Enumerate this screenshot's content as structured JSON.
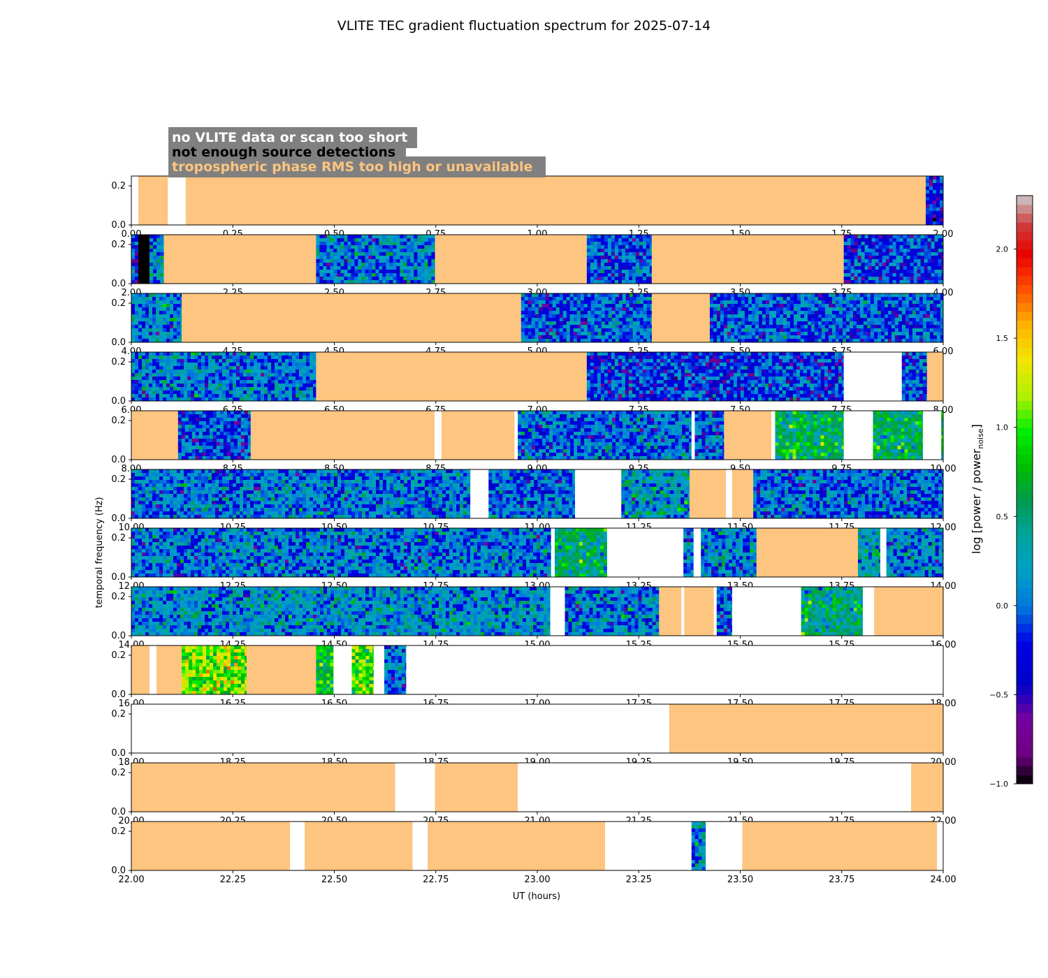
{
  "chart_data": {
    "type": "heatmap",
    "title": "VLITE TEC gradient fluctuation spectrum for 2025-07-14",
    "xlabel": "UT (hours)",
    "ylabel": "temporal frequency (Hz)",
    "ylim": [
      0.0,
      0.25
    ],
    "ytick_labels": [
      "0.0",
      "0.2"
    ],
    "legend": {
      "placement": "top-left",
      "entries": [
        {
          "label": "no VLITE data or scan too short",
          "text_color": "#ffffff",
          "key": "nodata"
        },
        {
          "label": "not enough source detections",
          "text_color": "#000000",
          "key": "fewdet"
        },
        {
          "label": "tropospheric phase RMS too high or unavailable",
          "text_color": "#fdc580",
          "key": "tropo"
        }
      ],
      "background": "#808080"
    },
    "colors": {
      "tropo": "#fdc580",
      "fewdet": "#000000",
      "nodata": "#ffffff"
    },
    "colorbar": {
      "label": "log [power / power",
      "label_subscript": "noise",
      "label_suffix": "]",
      "range": [
        -1.0,
        2.3
      ],
      "tick_values": [
        -1.0,
        -0.5,
        0.0,
        0.5,
        1.0,
        1.5,
        2.0
      ],
      "tick_labels": [
        "−1.0",
        "−0.5",
        "0.0",
        "0.5",
        "1.0",
        "1.5",
        "2.0"
      ]
    },
    "panels": [
      {
        "x_range": [
          0,
          2
        ],
        "tick_labels": [
          "0.00",
          "0.25",
          "0.50",
          "0.75",
          "1.00",
          "1.25",
          "1.50",
          "1.75",
          "2.00"
        ],
        "segments": [
          {
            "s": 0.0,
            "e": 0.017,
            "k": "nodata"
          },
          {
            "s": 0.017,
            "e": 0.09,
            "k": "tropo"
          },
          {
            "s": 0.09,
            "e": 0.134,
            "k": "nodata"
          },
          {
            "s": 0.134,
            "e": 1.957,
            "k": "tropo"
          },
          {
            "s": 1.957,
            "e": 2.0,
            "k": "data",
            "lvl": -0.3
          }
        ]
      },
      {
        "x_range": [
          2,
          4
        ],
        "tick_labels": [
          "2.00",
          "2.25",
          "2.50",
          "2.75",
          "3.00",
          "3.25",
          "3.50",
          "3.75",
          "4.00"
        ],
        "segments": [
          {
            "s": 2.0,
            "e": 2.017,
            "k": "data",
            "lvl": -0.2
          },
          {
            "s": 2.017,
            "e": 2.045,
            "k": "fewdet"
          },
          {
            "s": 2.045,
            "e": 2.08,
            "k": "data",
            "lvl": 0.1
          },
          {
            "s": 2.08,
            "e": 2.455,
            "k": "tropo"
          },
          {
            "s": 2.455,
            "e": 2.748,
            "k": "data",
            "lvl": 0.05
          },
          {
            "s": 2.748,
            "e": 3.122,
            "k": "tropo"
          },
          {
            "s": 3.122,
            "e": 3.282,
            "k": "data",
            "lvl": -0.1
          },
          {
            "s": 3.282,
            "e": 3.755,
            "k": "tropo"
          },
          {
            "s": 3.755,
            "e": 4.0,
            "k": "data",
            "lvl": -0.15
          }
        ]
      },
      {
        "x_range": [
          4,
          6
        ],
        "tick_labels": [
          "4.00",
          "4.25",
          "4.50",
          "4.75",
          "5.00",
          "5.25",
          "5.50",
          "5.75",
          "6.00"
        ],
        "segments": [
          {
            "s": 4.0,
            "e": 4.124,
            "k": "data",
            "lvl": 0.1
          },
          {
            "s": 4.124,
            "e": 4.96,
            "k": "tropo"
          },
          {
            "s": 4.96,
            "e": 5.282,
            "k": "data",
            "lvl": -0.05
          },
          {
            "s": 5.282,
            "e": 5.425,
            "k": "tropo"
          },
          {
            "s": 5.425,
            "e": 6.0,
            "k": "data",
            "lvl": -0.05
          }
        ]
      },
      {
        "x_range": [
          6,
          8
        ],
        "tick_labels": [
          "6.00",
          "6.25",
          "6.50",
          "6.75",
          "7.00",
          "7.25",
          "7.50",
          "7.75",
          "8.00"
        ],
        "segments": [
          {
            "s": 6.0,
            "e": 6.455,
            "k": "data",
            "lvl": 0.05
          },
          {
            "s": 6.455,
            "e": 7.122,
            "k": "tropo"
          },
          {
            "s": 7.122,
            "e": 7.755,
            "k": "data",
            "lvl": -0.15
          },
          {
            "s": 7.755,
            "e": 7.898,
            "k": "nodata"
          },
          {
            "s": 7.898,
            "e": 7.96,
            "k": "data",
            "lvl": -0.1
          },
          {
            "s": 7.96,
            "e": 8.0,
            "k": "tropo"
          }
        ]
      },
      {
        "x_range": [
          8,
          10
        ],
        "tick_labels": [
          "8.00",
          "8.25",
          "8.50",
          "8.75",
          "9.00",
          "9.25",
          "9.50",
          "9.75",
          "10.00"
        ],
        "segments": [
          {
            "s": 8.0,
            "e": 8.115,
            "k": "tropo"
          },
          {
            "s": 8.115,
            "e": 8.294,
            "k": "data",
            "lvl": -0.1
          },
          {
            "s": 8.294,
            "e": 8.747,
            "k": "tropo"
          },
          {
            "s": 8.747,
            "e": 8.764,
            "k": "nodata"
          },
          {
            "s": 8.764,
            "e": 8.944,
            "k": "tropo"
          },
          {
            "s": 8.944,
            "e": 8.952,
            "k": "nodata"
          },
          {
            "s": 8.952,
            "e": 9.38,
            "k": "data",
            "lvl": 0.0
          },
          {
            "s": 9.38,
            "e": 9.388,
            "k": "nodata"
          },
          {
            "s": 9.388,
            "e": 9.46,
            "k": "data",
            "lvl": -0.05
          },
          {
            "s": 9.46,
            "e": 9.577,
            "k": "tropo"
          },
          {
            "s": 9.577,
            "e": 9.586,
            "k": "nodata"
          },
          {
            "s": 9.586,
            "e": 9.755,
            "k": "data",
            "lvl": 0.6
          },
          {
            "s": 9.755,
            "e": 9.827,
            "k": "nodata"
          },
          {
            "s": 9.827,
            "e": 9.95,
            "k": "data",
            "lvl": 0.55
          },
          {
            "s": 9.95,
            "e": 9.995,
            "k": "nodata"
          },
          {
            "s": 9.995,
            "e": 10.0,
            "k": "data",
            "lvl": 0.5
          }
        ]
      },
      {
        "x_range": [
          10,
          12
        ],
        "tick_labels": [
          "10.00",
          "10.25",
          "10.50",
          "10.75",
          "11.00",
          "11.25",
          "11.50",
          "11.75",
          "12.00"
        ],
        "segments": [
          {
            "s": 10.0,
            "e": 10.835,
            "k": "data",
            "lvl": 0.05
          },
          {
            "s": 10.835,
            "e": 10.88,
            "k": "nodata"
          },
          {
            "s": 10.88,
            "e": 11.093,
            "k": "data",
            "lvl": 0.0
          },
          {
            "s": 11.093,
            "e": 11.207,
            "k": "nodata"
          },
          {
            "s": 11.207,
            "e": 11.375,
            "k": "data",
            "lvl": 0.2
          },
          {
            "s": 11.375,
            "e": 11.465,
            "k": "tropo"
          },
          {
            "s": 11.465,
            "e": 11.48,
            "k": "nodata"
          },
          {
            "s": 11.48,
            "e": 11.532,
            "k": "tropo"
          },
          {
            "s": 11.532,
            "e": 12.0,
            "k": "data",
            "lvl": 0.0
          }
        ]
      },
      {
        "x_range": [
          12,
          14
        ],
        "tick_labels": [
          "12.00",
          "12.25",
          "12.50",
          "12.75",
          "13.00",
          "13.25",
          "13.50",
          "13.75",
          "14.00"
        ],
        "segments": [
          {
            "s": 12.0,
            "e": 13.034,
            "k": "data",
            "lvl": 0.05
          },
          {
            "s": 13.034,
            "e": 13.043,
            "k": "nodata"
          },
          {
            "s": 13.043,
            "e": 13.172,
            "k": "data",
            "lvl": 0.5
          },
          {
            "s": 13.172,
            "e": 13.36,
            "k": "nodata"
          },
          {
            "s": 13.36,
            "e": 13.385,
            "k": "data",
            "lvl": 0.0
          },
          {
            "s": 13.385,
            "e": 13.403,
            "k": "nodata"
          },
          {
            "s": 13.403,
            "e": 13.54,
            "k": "data",
            "lvl": 0.1
          },
          {
            "s": 13.54,
            "e": 13.79,
            "k": "tropo"
          },
          {
            "s": 13.79,
            "e": 13.845,
            "k": "data",
            "lvl": 0.3
          },
          {
            "s": 13.845,
            "e": 13.86,
            "k": "nodata"
          },
          {
            "s": 13.86,
            "e": 14.0,
            "k": "data",
            "lvl": 0.1
          }
        ]
      },
      {
        "x_range": [
          14,
          16
        ],
        "tick_labels": [
          "14.00",
          "14.25",
          "14.50",
          "14.75",
          "15.00",
          "15.25",
          "15.50",
          "15.75",
          "16.00"
        ],
        "segments": [
          {
            "s": 14.0,
            "e": 15.032,
            "k": "data",
            "lvl": 0.15
          },
          {
            "s": 15.032,
            "e": 15.068,
            "k": "nodata"
          },
          {
            "s": 15.068,
            "e": 15.3,
            "k": "data",
            "lvl": 0.05
          },
          {
            "s": 15.3,
            "e": 15.355,
            "k": "tropo"
          },
          {
            "s": 15.355,
            "e": 15.362,
            "k": "nodata"
          },
          {
            "s": 15.362,
            "e": 15.435,
            "k": "tropo"
          },
          {
            "s": 15.435,
            "e": 15.442,
            "k": "nodata"
          },
          {
            "s": 15.442,
            "e": 15.48,
            "k": "data",
            "lvl": 0.0
          },
          {
            "s": 15.48,
            "e": 15.65,
            "k": "nodata"
          },
          {
            "s": 15.65,
            "e": 15.802,
            "k": "data",
            "lvl": 0.45
          },
          {
            "s": 15.802,
            "e": 15.83,
            "k": "nodata"
          },
          {
            "s": 15.83,
            "e": 16.0,
            "k": "tropo"
          }
        ]
      },
      {
        "x_range": [
          16,
          18
        ],
        "tick_labels": [
          "16.00",
          "16.25",
          "16.50",
          "16.75",
          "17.00",
          "17.25",
          "17.50",
          "17.75",
          "18.00"
        ],
        "segments": [
          {
            "s": 16.0,
            "e": 16.045,
            "k": "tropo"
          },
          {
            "s": 16.045,
            "e": 16.062,
            "k": "nodata"
          },
          {
            "s": 16.062,
            "e": 16.124,
            "k": "tropo"
          },
          {
            "s": 16.124,
            "e": 16.284,
            "k": "data",
            "lvl": 1.1
          },
          {
            "s": 16.284,
            "e": 16.455,
            "k": "tropo"
          },
          {
            "s": 16.455,
            "e": 16.498,
            "k": "data",
            "lvl": 0.8
          },
          {
            "s": 16.498,
            "e": 16.543,
            "k": "nodata"
          },
          {
            "s": 16.543,
            "e": 16.597,
            "k": "data",
            "lvl": 1.0
          },
          {
            "s": 16.597,
            "e": 16.623,
            "k": "nodata"
          },
          {
            "s": 16.623,
            "e": 16.677,
            "k": "data",
            "lvl": 0.0
          },
          {
            "s": 16.677,
            "e": 18.0,
            "k": "nodata"
          }
        ]
      },
      {
        "x_range": [
          18,
          20
        ],
        "tick_labels": [
          "18.00",
          "18.25",
          "18.50",
          "18.75",
          "19.00",
          "19.25",
          "19.50",
          "19.75",
          "20.00"
        ],
        "segments": [
          {
            "s": 18.0,
            "e": 19.325,
            "k": "nodata"
          },
          {
            "s": 19.325,
            "e": 20.0,
            "k": "tropo"
          }
        ]
      },
      {
        "x_range": [
          20,
          22
        ],
        "tick_labels": [
          "20.00",
          "20.25",
          "20.50",
          "20.75",
          "21.00",
          "21.25",
          "21.50",
          "21.75",
          "22.00"
        ],
        "segments": [
          {
            "s": 20.0,
            "e": 20.65,
            "k": "tropo"
          },
          {
            "s": 20.65,
            "e": 20.748,
            "k": "nodata"
          },
          {
            "s": 20.748,
            "e": 20.952,
            "k": "tropo"
          },
          {
            "s": 20.952,
            "e": 21.921,
            "k": "nodata"
          },
          {
            "s": 21.921,
            "e": 22.0,
            "k": "tropo"
          }
        ]
      },
      {
        "x_range": [
          22,
          24
        ],
        "tick_labels": [
          "22.00",
          "22.25",
          "22.50",
          "22.75",
          "23.00",
          "23.25",
          "23.50",
          "23.75",
          "24.00"
        ],
        "segments": [
          {
            "s": 22.0,
            "e": 22.391,
            "k": "tropo"
          },
          {
            "s": 22.391,
            "e": 22.427,
            "k": "nodata"
          },
          {
            "s": 22.427,
            "e": 22.693,
            "k": "tropo"
          },
          {
            "s": 22.693,
            "e": 22.73,
            "k": "nodata"
          },
          {
            "s": 22.73,
            "e": 23.167,
            "k": "tropo"
          },
          {
            "s": 23.167,
            "e": 23.38,
            "k": "nodata"
          },
          {
            "s": 23.38,
            "e": 23.415,
            "k": "data",
            "lvl": 0.2
          },
          {
            "s": 23.415,
            "e": 23.505,
            "k": "nodata"
          },
          {
            "s": 23.505,
            "e": 23.985,
            "k": "tropo"
          },
          {
            "s": 23.985,
            "e": 24.0,
            "k": "nodata"
          }
        ]
      }
    ]
  }
}
